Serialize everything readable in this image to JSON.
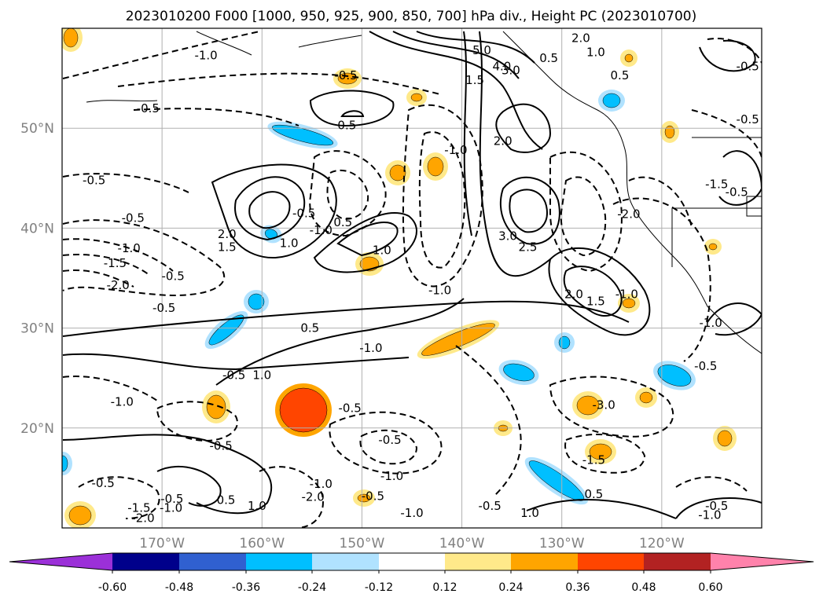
{
  "chart_data": {
    "type": "contour",
    "title": "2023010200 F000 [1000, 950, 925, 900, 850, 700] hPa div., Height PC (2023010700)",
    "lon_range": [
      -180,
      -110
    ],
    "lat_range": [
      10,
      60
    ],
    "lat_ticks": [
      {
        "value": 20,
        "label": "20°N"
      },
      {
        "value": 30,
        "label": "30°N"
      },
      {
        "value": 40,
        "label": "40°N"
      },
      {
        "value": 50,
        "label": "50°N"
      }
    ],
    "lon_ticks": [
      {
        "value": -170,
        "label": "170°W"
      },
      {
        "value": -160,
        "label": "160°W"
      },
      {
        "value": -150,
        "label": "150°W"
      },
      {
        "value": -140,
        "label": "140°W"
      },
      {
        "value": -130,
        "label": "130°W"
      },
      {
        "value": -120,
        "label": "120°W"
      }
    ],
    "grid": true,
    "colorbar": {
      "colors": [
        "#9b30d8",
        "#00008b",
        "#3060d0",
        "#00bfff",
        "#b0e2ff",
        "#ffffff",
        "#ffe98a",
        "#ffa500",
        "#ff4500",
        "#b22222",
        "#ff82ab"
      ],
      "tick_labels": [
        "-0.60",
        "-0.48",
        "-0.36",
        "-0.24",
        "-0.12",
        "0.12",
        "0.24",
        "0.36",
        "0.48",
        "0.60"
      ],
      "extend": "both"
    },
    "contour_labels": [
      {
        "text": "-1.0",
        "lon": -165.6,
        "lat": 57.3
      },
      {
        "text": "-0.5",
        "lon": -171.4,
        "lat": 52.0
      },
      {
        "text": "-0.5",
        "lon": -151.6,
        "lat": 55.3
      },
      {
        "text": "0.5",
        "lon": -151.5,
        "lat": 50.3
      },
      {
        "text": "-0.5",
        "lon": -176.8,
        "lat": 44.8
      },
      {
        "text": "-0.5",
        "lon": -172.9,
        "lat": 41.0
      },
      {
        "text": "-1.0",
        "lon": -173.3,
        "lat": 38.0
      },
      {
        "text": "-1.5",
        "lon": -174.7,
        "lat": 36.5
      },
      {
        "text": "-2.0",
        "lon": -174.4,
        "lat": 34.3
      },
      {
        "text": "-0.5",
        "lon": -168.9,
        "lat": 35.2
      },
      {
        "text": "-0.5",
        "lon": -169.8,
        "lat": 32.0
      },
      {
        "text": "2.0",
        "lon": -163.5,
        "lat": 39.4
      },
      {
        "text": "1.5",
        "lon": -163.5,
        "lat": 38.1
      },
      {
        "text": "1.0",
        "lon": -157.3,
        "lat": 38.5
      },
      {
        "text": "-0.5",
        "lon": -155.8,
        "lat": 41.5
      },
      {
        "text": "-1.0",
        "lon": -154.1,
        "lat": 39.8
      },
      {
        "text": "0.5",
        "lon": -151.9,
        "lat": 40.6
      },
      {
        "text": "1.0",
        "lon": -148.0,
        "lat": 37.8
      },
      {
        "text": "-1.0",
        "lon": -140.6,
        "lat": 47.8
      },
      {
        "text": "-1.0",
        "lon": -142.2,
        "lat": 33.8
      },
      {
        "text": "0.5",
        "lon": -155.2,
        "lat": 30.0
      },
      {
        "text": "-1.0",
        "lon": -149.1,
        "lat": 28.0
      },
      {
        "text": "1.0",
        "lon": -160.0,
        "lat": 25.3
      },
      {
        "text": "-0.5",
        "lon": -162.8,
        "lat": 25.3
      },
      {
        "text": "-1.0",
        "lon": -174.0,
        "lat": 22.6
      },
      {
        "text": "-0.5",
        "lon": -151.2,
        "lat": 22.0
      },
      {
        "text": "-0.5",
        "lon": -147.2,
        "lat": 18.8
      },
      {
        "text": "-0.5",
        "lon": -164.1,
        "lat": 18.2
      },
      {
        "text": "-1.0",
        "lon": -147.0,
        "lat": 15.2
      },
      {
        "text": "-0.5",
        "lon": -175.9,
        "lat": 14.5
      },
      {
        "text": "-1.0",
        "lon": -154.1,
        "lat": 14.4
      },
      {
        "text": "-2.0",
        "lon": -154.9,
        "lat": 13.1
      },
      {
        "text": "-2.0",
        "lon": -171.9,
        "lat": 11.0
      },
      {
        "text": "-1.5",
        "lon": -172.3,
        "lat": 12.0
      },
      {
        "text": "-0.5",
        "lon": -169.0,
        "lat": 12.9
      },
      {
        "text": "-1.0",
        "lon": -169.1,
        "lat": 12.0
      },
      {
        "text": "0.5",
        "lon": -163.6,
        "lat": 12.8
      },
      {
        "text": "1.0",
        "lon": -160.5,
        "lat": 12.2
      },
      {
        "text": "-1.0",
        "lon": -145.0,
        "lat": 11.5
      },
      {
        "text": "-0.5",
        "lon": -148.9,
        "lat": 13.2
      },
      {
        "text": "-0.5",
        "lon": -137.2,
        "lat": 12.2
      },
      {
        "text": "1.0",
        "lon": -133.2,
        "lat": 11.5
      },
      {
        "text": "0.5",
        "lon": -126.8,
        "lat": 13.4
      },
      {
        "text": "-1.5",
        "lon": -126.8,
        "lat": 16.8
      },
      {
        "text": "-3.0",
        "lon": -125.8,
        "lat": 22.3
      },
      {
        "text": "-0.5",
        "lon": -114.5,
        "lat": 12.2
      },
      {
        "text": "-1.0",
        "lon": -115.2,
        "lat": 11.3
      },
      {
        "text": "5.0",
        "lon": -138.0,
        "lat": 57.8
      },
      {
        "text": "4.0",
        "lon": -136.0,
        "lat": 56.2
      },
      {
        "text": "3.0",
        "lon": -135.1,
        "lat": 55.8
      },
      {
        "text": "1.5",
        "lon": -138.7,
        "lat": 54.8
      },
      {
        "text": "2.0",
        "lon": -128.1,
        "lat": 59.0
      },
      {
        "text": "1.0",
        "lon": -126.6,
        "lat": 57.6
      },
      {
        "text": "0.5",
        "lon": -131.3,
        "lat": 57.0
      },
      {
        "text": "0.5",
        "lon": -124.2,
        "lat": 55.3
      },
      {
        "text": "2.0",
        "lon": -135.9,
        "lat": 48.7
      },
      {
        "text": "3.0",
        "lon": -135.4,
        "lat": 39.2
      },
      {
        "text": "2.5",
        "lon": -133.4,
        "lat": 38.1
      },
      {
        "text": "2.0",
        "lon": -128.8,
        "lat": 33.4
      },
      {
        "text": "1.5",
        "lon": -126.6,
        "lat": 32.7
      },
      {
        "text": "-1.0",
        "lon": -123.5,
        "lat": 33.4
      },
      {
        "text": "-2.0",
        "lon": -123.3,
        "lat": 41.4
      },
      {
        "text": "-1.5",
        "lon": -114.5,
        "lat": 44.4
      },
      {
        "text": "-0.5",
        "lon": -112.5,
        "lat": 43.6
      },
      {
        "text": "-0.5",
        "lon": -111.4,
        "lat": 56.2
      },
      {
        "text": "-0.5",
        "lon": -111.4,
        "lat": 50.9
      },
      {
        "text": "-1.0",
        "lon": -115.1,
        "lat": 30.5
      },
      {
        "text": "-0.5",
        "lon": -115.6,
        "lat": 26.2
      }
    ]
  }
}
